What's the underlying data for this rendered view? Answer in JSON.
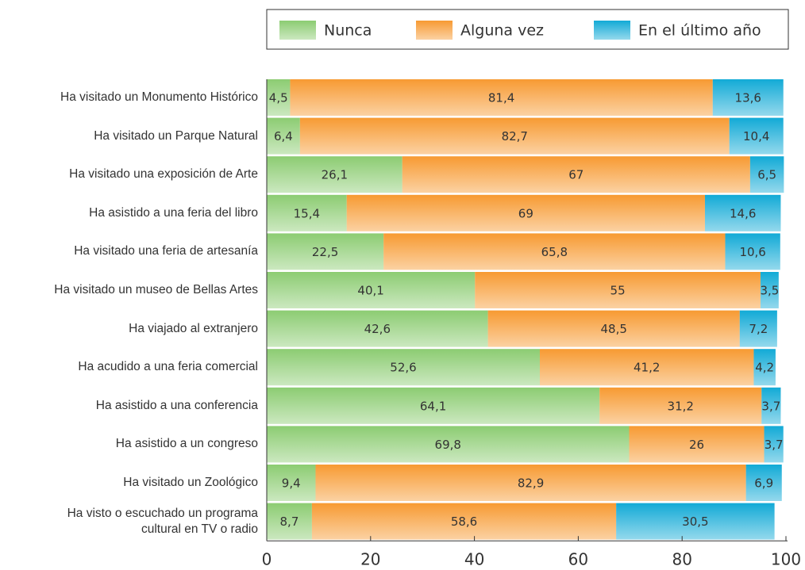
{
  "chart_data": {
    "type": "stacked-barh",
    "categories": [
      "Ha visitado un Monumento Histórico",
      "Ha visitado un Parque Natural",
      "Ha visitado una exposición de Arte",
      "Ha asistido a una feria del libro",
      "Ha visitado una feria de artesanía",
      "Ha visitado un museo de Bellas Artes",
      "Ha viajado al extranjero",
      "Ha acudido a una feria comercial",
      "Ha asistido a una conferencia",
      "Ha asistido a un congreso",
      "Ha visitado un Zoológico",
      "Ha visto o escuchado un programa\ncultural en TV o radio"
    ],
    "series": [
      {
        "name": "Nunca",
        "color": "#8ccc72",
        "values": [
          4.5,
          6.4,
          26.1,
          15.4,
          22.5,
          40.1,
          42.6,
          52.6,
          64.1,
          69.8,
          9.4,
          8.7
        ],
        "value_labels": [
          "4,5",
          "6,4",
          "26,1",
          "15,4",
          "22,5",
          "40,1",
          "42,6",
          "52,6",
          "64,1",
          "69,8",
          "9,4",
          "8,7"
        ]
      },
      {
        "name": "Alguna vez",
        "color": "#f79a32",
        "values": [
          81.4,
          82.7,
          67,
          69,
          65.8,
          55,
          48.5,
          41.2,
          31.2,
          26,
          82.9,
          58.6
        ],
        "value_labels": [
          "81,4",
          "82,7",
          "67",
          "69",
          "65,8",
          "55",
          "48,5",
          "41,2",
          "31,2",
          "26",
          "82,9",
          "58,6"
        ]
      },
      {
        "name": "En el último año",
        "color": "#12aad6",
        "values": [
          13.6,
          10.4,
          6.5,
          14.6,
          10.6,
          3.5,
          7.2,
          4.2,
          3.7,
          3.7,
          6.9,
          30.5
        ],
        "value_labels": [
          "13,6",
          "10,4",
          "6,5",
          "14,6",
          "10,6",
          "3,5",
          "7,2",
          "4,2",
          "3,7",
          "3,7",
          "6,9",
          "30,5"
        ]
      }
    ],
    "xlim": [
      0,
      100
    ],
    "xticks": [
      0,
      20,
      40,
      60,
      80,
      100
    ],
    "legend": "top"
  }
}
